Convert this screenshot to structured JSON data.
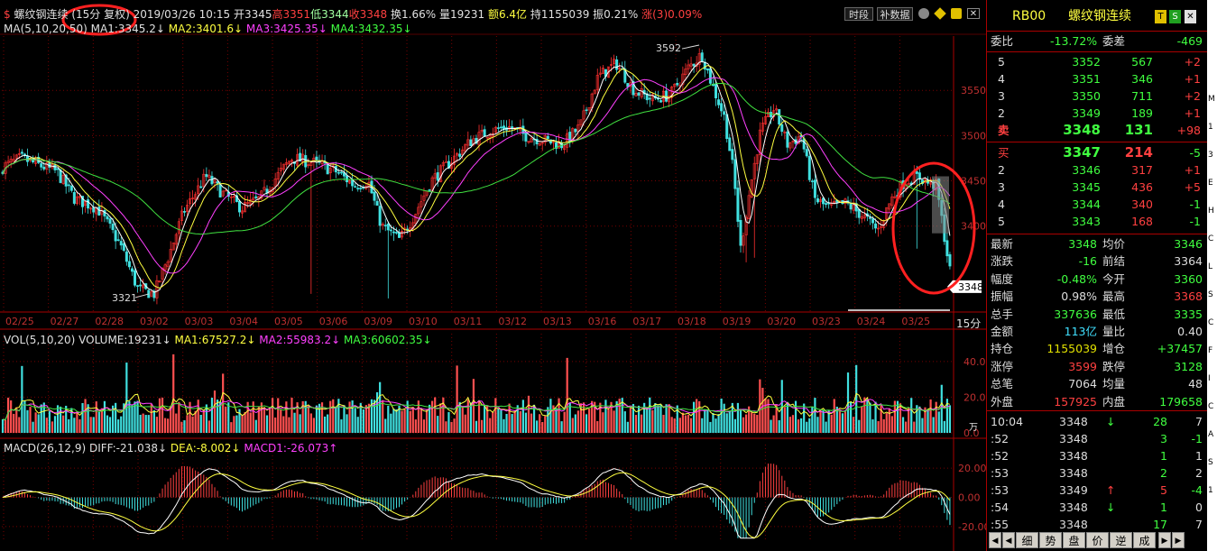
{
  "header": {
    "symbol_marker": "$",
    "instrument": "螺纹钢连续",
    "period_mode": "(15分 复权)",
    "datetime": "2019/03/26 10:15",
    "open": "开3345",
    "high": "高3351",
    "low": "低3344",
    "close": "收3348",
    "turnover": "换1.66%",
    "volume": "量19231",
    "amount": "额6.4亿",
    "open_interest": "持1155039",
    "amplitude": "振0.21%",
    "change": "涨(3)0.09%",
    "btn_period": "时段",
    "btn_supplement": "补数据"
  },
  "ma_line": {
    "label": "MA(5,10,20,50)",
    "ma1": "MA1:3345.2",
    "ma2": "MA2:3401.6",
    "ma3": "MA3:3425.35",
    "ma4": "MA4:3432.35"
  },
  "vol_line": {
    "label": "VOL(5,10,20)",
    "volume": "VOLUME:19231",
    "ma1": "MA1:67527.2",
    "ma2": "MA2:55983.2",
    "ma3": "MA3:60602.35"
  },
  "macd_line": {
    "label": "MACD(26,12,9)",
    "diff": "DIFF:-21.038",
    "dea": "DEA:-8.002",
    "macd": "MACD1:-26.073"
  },
  "price_axis": [
    "3550",
    "3500",
    "3450",
    "3400"
  ],
  "price_annotations": {
    "high": "3592",
    "low": "3321",
    "last": "3348"
  },
  "vol_axis": [
    "40.0",
    "20.0",
    "0.0"
  ],
  "vol_unit": "万",
  "macd_axis": [
    "20.00",
    "0.00",
    "-20.00"
  ],
  "period_label": "15分",
  "date_labels": [
    "02/25",
    "02/27",
    "02/28",
    "03/02",
    "03/03",
    "03/04",
    "03/05",
    "03/06",
    "03/09",
    "03/10",
    "03/11",
    "03/12",
    "03/13",
    "03/16",
    "03/17",
    "03/18",
    "03/19",
    "03/20",
    "03/23",
    "03/24",
    "03/25"
  ],
  "quote": {
    "code": "RB00",
    "name": "螺纹钢连续",
    "ratio_label": "委比",
    "ratio": "-13.72%",
    "diff_label": "委差",
    "diff": "-469",
    "asks": [
      {
        "level": "5",
        "price": "3352",
        "vol": "567",
        "chg": "+2"
      },
      {
        "level": "4",
        "price": "3351",
        "vol": "346",
        "chg": "+1"
      },
      {
        "level": "3",
        "price": "3350",
        "vol": "711",
        "chg": "+2"
      },
      {
        "level": "2",
        "price": "3349",
        "vol": "189",
        "chg": "+1"
      },
      {
        "level": "卖",
        "price": "3348",
        "vol": "131",
        "chg": "+98"
      }
    ],
    "bids": [
      {
        "level": "买",
        "price": "3347",
        "vol": "214",
        "chg": "-5"
      },
      {
        "level": "2",
        "price": "3346",
        "vol": "317",
        "chg": "+1"
      },
      {
        "level": "3",
        "price": "3345",
        "vol": "436",
        "chg": "+5"
      },
      {
        "level": "4",
        "price": "3344",
        "vol": "340",
        "chg": "-1"
      },
      {
        "level": "5",
        "price": "3343",
        "vol": "168",
        "chg": "-1"
      }
    ],
    "stats": [
      [
        "最新",
        "3348",
        "均价",
        "3346"
      ],
      [
        "涨跌",
        "-16",
        "前结",
        "3364"
      ],
      [
        "幅度",
        "-0.48%",
        "今开",
        "3360"
      ],
      [
        "振幅",
        "0.98%",
        "最高",
        "3368"
      ],
      [
        "总手",
        "337636",
        "最低",
        "3335"
      ],
      [
        "金额",
        "113亿",
        "量比",
        "0.40"
      ],
      [
        "持仓",
        "1155039",
        "增仓",
        "+37457"
      ],
      [
        "涨停",
        "3599",
        "跌停",
        "3128"
      ],
      [
        "总笔",
        "7064",
        "均量",
        "48"
      ],
      [
        "外盘",
        "157925",
        "内盘",
        "179658"
      ]
    ],
    "ticks": [
      {
        "time": "10:04",
        "price": "3348",
        "arrow": "↓",
        "vol": "28",
        "chg": "7"
      },
      {
        "time": ":52",
        "price": "3348",
        "arrow": "",
        "vol": "3",
        "chg": "-1"
      },
      {
        "time": ":52",
        "price": "3348",
        "arrow": "",
        "vol": "1",
        "chg": "1"
      },
      {
        "time": ":53",
        "price": "3348",
        "arrow": "",
        "vol": "2",
        "chg": "2"
      },
      {
        "time": ":53",
        "price": "3349",
        "arrow": "↑",
        "vol": "5",
        "chg": "-4"
      },
      {
        "time": ":54",
        "price": "3348",
        "arrow": "↓",
        "vol": "1",
        "chg": "0"
      },
      {
        "time": ":55",
        "price": "3348",
        "arrow": "",
        "vol": "17",
        "chg": "7"
      }
    ],
    "tabs": [
      "细",
      "势",
      "盘",
      "价",
      "逆",
      "成"
    ]
  },
  "edge_text": [
    "M",
    "1",
    "3",
    "E",
    "H",
    "C",
    "L",
    "S",
    "C",
    "F",
    "I",
    "C",
    "A",
    "S",
    "1"
  ]
}
